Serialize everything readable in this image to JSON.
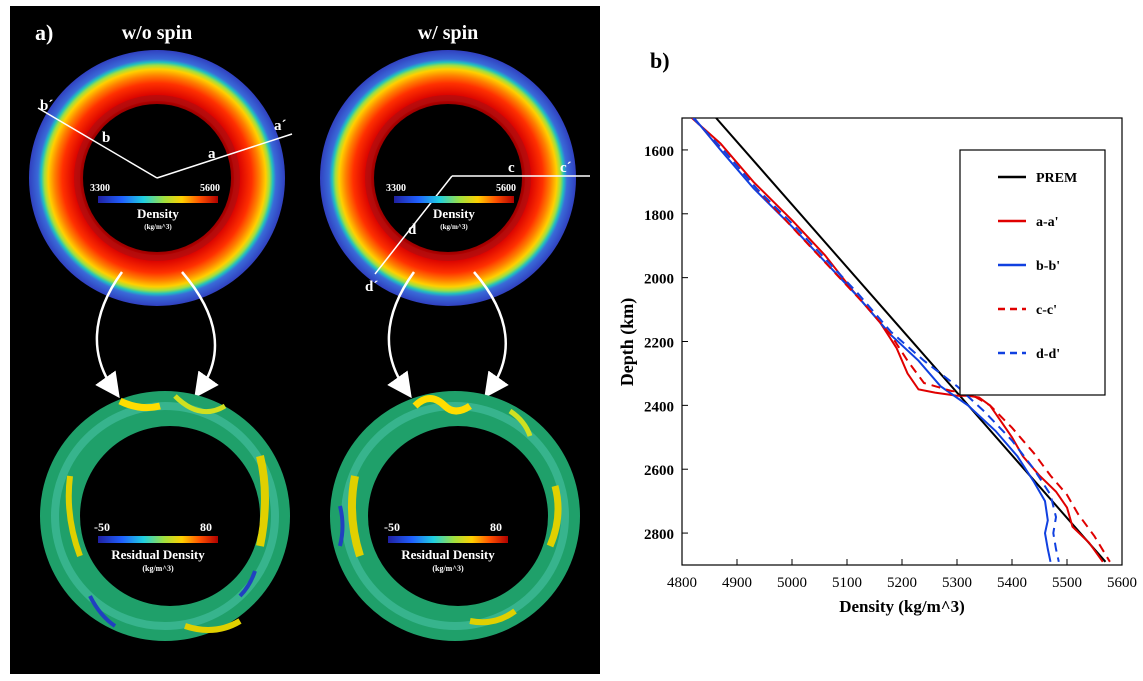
{
  "panel_a": {
    "label": "a)",
    "col_titles": [
      "w/o spin",
      "w/ spin"
    ],
    "density_bar": {
      "min": "3300",
      "max": "5600",
      "title": "Density",
      "unit": "(kg/m^3)"
    },
    "residual_bar": {
      "min": "-50",
      "max": "80",
      "title": "Residual Density",
      "unit": "(kg/m^3)"
    },
    "profile_labels": {
      "a": "a",
      "a_prime": "a´",
      "b": "b",
      "b_prime": "b´",
      "c": "c",
      "c_prime": "c´",
      "d": "d",
      "d_prime": "d´"
    },
    "colors": {
      "ring_red": "#c00000",
      "ring_blue": "#3a4fd0",
      "residual_green": "#1fa06a"
    }
  },
  "panel_b": {
    "label": "b)"
  },
  "chart_data": {
    "type": "line",
    "xlabel": "Density (kg/m^3)",
    "ylabel": "Depth (km)",
    "xlim": [
      4800,
      5600
    ],
    "ylim": [
      2900,
      1500
    ],
    "y_inverted": true,
    "xticks": [
      4800,
      4900,
      5000,
      5100,
      5200,
      5300,
      5400,
      5500,
      5600
    ],
    "yticks": [
      1600,
      1800,
      2000,
      2200,
      2400,
      2600,
      2800
    ],
    "legend_position": "top-right",
    "series": [
      {
        "name": "PREM",
        "color": "#000000",
        "dash": "solid",
        "x": [
          4862,
          5570
        ],
        "y": [
          1500,
          2890
        ]
      },
      {
        "name": "a-a'",
        "color": "#e00000",
        "dash": "solid",
        "x": [
          4818,
          4870,
          4930,
          5000,
          5060,
          5110,
          5160,
          5190,
          5210,
          5230,
          5260,
          5300,
          5320,
          5340,
          5360,
          5380,
          5400,
          5420,
          5450,
          5480,
          5500,
          5510,
          5540,
          5565
        ],
        "y": [
          1500,
          1580,
          1700,
          1820,
          1930,
          2040,
          2140,
          2220,
          2300,
          2350,
          2360,
          2370,
          2370,
          2375,
          2400,
          2450,
          2500,
          2560,
          2620,
          2670,
          2720,
          2780,
          2830,
          2890
        ]
      },
      {
        "name": "b-b'",
        "color": "#1040e0",
        "dash": "solid",
        "x": [
          4822,
          4870,
          4930,
          5000,
          5060,
          5120,
          5180,
          5230,
          5270,
          5320,
          5370,
          5410,
          5440,
          5460,
          5465,
          5460,
          5465,
          5470
        ],
        "y": [
          1500,
          1600,
          1720,
          1840,
          1950,
          2060,
          2180,
          2260,
          2340,
          2400,
          2480,
          2560,
          2640,
          2700,
          2760,
          2800,
          2850,
          2890
        ]
      },
      {
        "name": "c-c'",
        "color": "#e00000",
        "dash": "dashed",
        "x": [
          4820,
          4880,
          4940,
          5010,
          5070,
          5130,
          5180,
          5210,
          5240,
          5290,
          5320,
          5360,
          5400,
          5440,
          5470,
          5500,
          5520,
          5550,
          5578
        ],
        "y": [
          1500,
          1610,
          1730,
          1860,
          1970,
          2080,
          2180,
          2260,
          2330,
          2355,
          2360,
          2400,
          2470,
          2550,
          2620,
          2680,
          2740,
          2810,
          2890
        ]
      },
      {
        "name": "d-d'",
        "color": "#1040e0",
        "dash": "dashed",
        "x": [
          4820,
          4875,
          4935,
          5000,
          5060,
          5120,
          5180,
          5240,
          5300,
          5350,
          5400,
          5440,
          5470,
          5480,
          5475,
          5480,
          5485
        ],
        "y": [
          1500,
          1600,
          1720,
          1830,
          1940,
          2050,
          2170,
          2260,
          2340,
          2420,
          2510,
          2600,
          2680,
          2750,
          2800,
          2850,
          2890
        ]
      }
    ]
  }
}
